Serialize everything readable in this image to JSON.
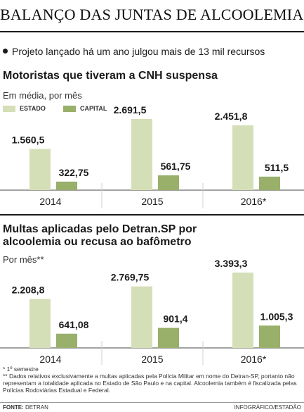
{
  "header": {
    "title": "BALANÇO DAS JUNTAS DE ALCOOLEMIA",
    "lead": "Projeto lançado há um ano julgou mais de 13 mil recursos"
  },
  "legend": {
    "estado": "ESTADO",
    "capital": "CAPITAL",
    "estado_color": "#d4dfb7",
    "capital_color": "#98b06a"
  },
  "chart_data": [
    {
      "type": "bar",
      "title": "Motoristas que tiveram a CNH suspensa",
      "subtitle": "Em média, por mês",
      "categories": [
        "2014",
        "2015",
        "2016*"
      ],
      "series": [
        {
          "name": "ESTADO",
          "values": [
            1560.5,
            2691.5,
            2451.8
          ],
          "labels": [
            "1.560,5",
            "2.691,5",
            "2.451,8"
          ]
        },
        {
          "name": "CAPITAL",
          "values": [
            322.75,
            561.75,
            511.5
          ],
          "labels": [
            "322,75",
            "561,75",
            "511,5"
          ]
        }
      ],
      "ylim": [
        0,
        2691.5
      ],
      "grid": false
    },
    {
      "type": "bar",
      "title": "Multas aplicadas pelo Detran.SP por alcoolemia ou recusa ao bafômetro",
      "title_lines": [
        "Multas aplicadas pelo Detran.SP por",
        "alcoolemia ou recusa ao bafômetro"
      ],
      "subtitle": "Por mês**",
      "categories": [
        "2014",
        "2015",
        "2016*"
      ],
      "series": [
        {
          "name": "ESTADO",
          "values": [
            2208.8,
            2769.75,
            3393.3
          ],
          "labels": [
            "2.208,8",
            "2.769,75",
            "3.393,3"
          ]
        },
        {
          "name": "CAPITAL",
          "values": [
            641.08,
            901.4,
            1005.3
          ],
          "labels": [
            "641,08",
            "901,4",
            "1.005,3"
          ]
        }
      ],
      "ylim": [
        0,
        3393.3
      ],
      "grid": false
    }
  ],
  "footnotes": {
    "note1": "* 1º semestre",
    "note2": "** Dados relativos exclusivamente a multas aplicadas pela Polícia Militar em nome do Detran-SP, portanto não representam a totalidade aplicada no Estado de São Paulo e na capital. Alcoolemia também é fiscalizada pelas Polícias Rodoviárias Estadual e Federal."
  },
  "footer": {
    "source_label": "FONTE:",
    "source": "DETRAN",
    "credit": "INFOGRÁFICO/ESTADÃO"
  }
}
